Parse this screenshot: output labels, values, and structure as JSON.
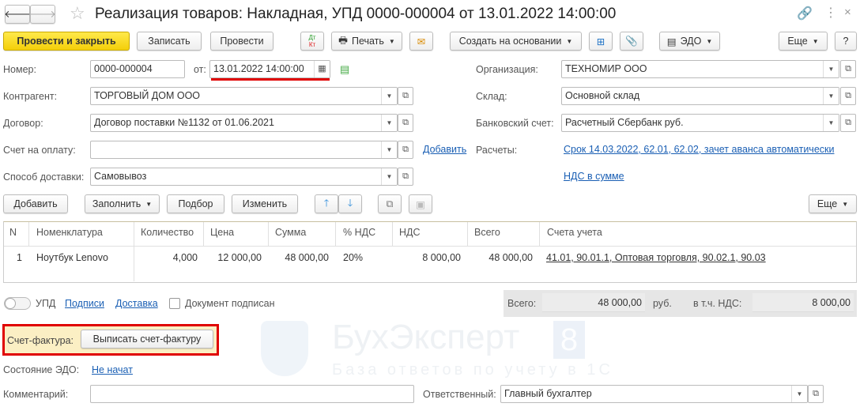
{
  "title": "Реализация товаров: Накладная, УПД 0000-000004 от 13.01.2022 14:00:00",
  "toolbar": {
    "post_close": "Провести и закрыть",
    "save": "Записать",
    "post": "Провести",
    "dtkt_dt": "Дт",
    "dtkt_kt": "Кт",
    "print": "Печать",
    "create_based": "Создать на основании",
    "edo": "ЭДО",
    "more": "Еще",
    "help": "?"
  },
  "form": {
    "number_label": "Номер:",
    "number": "0000-000004",
    "date_label": "от:",
    "date": "13.01.2022 14:00:00",
    "counterparty_label": "Контрагент:",
    "counterparty": "ТОРГОВЫЙ ДОМ ООО",
    "contract_label": "Договор:",
    "contract": "Договор поставки №1132 от 01.06.2021",
    "invoice_label": "Счет на оплату:",
    "invoice": "",
    "add_link": "Добавить",
    "delivery_label": "Способ доставки:",
    "delivery": "Самовывоз",
    "org_label": "Организация:",
    "org": "ТЕХНОМИР ООО",
    "warehouse_label": "Склад:",
    "warehouse": "Основной склад",
    "bank_label": "Банковский счет:",
    "bank": "Расчетный Сбербанк руб.",
    "settlements_label": "Расчеты:",
    "settlements": "Срок 14.03.2022, 62.01, 62.02, зачет аванса автоматически",
    "vat_link": "НДС в сумме"
  },
  "table_toolbar": {
    "add": "Добавить",
    "fill": "Заполнить",
    "pick": "Подбор",
    "edit": "Изменить",
    "more": "Еще"
  },
  "table": {
    "headers": [
      "N",
      "Номенклатура",
      "Количество",
      "Цена",
      "Сумма",
      "% НДС",
      "НДС",
      "Всего",
      "Счета учета"
    ],
    "rows": [
      [
        "1",
        "Ноутбук Lenovo",
        "4,000",
        "12 000,00",
        "48 000,00",
        "20%",
        "8 000,00",
        "48 000,00",
        "41.01, 90.01.1, Оптовая торговля, 90.02.1, 90.03"
      ]
    ]
  },
  "footer": {
    "upd": "УПД",
    "signatures": "Подписи",
    "delivery": "Доставка",
    "signed": "Документ подписан",
    "total_label": "Всего:",
    "total": "48 000,00",
    "currency": "руб.",
    "vat_label": "в т.ч. НДС:",
    "vat": "8 000,00",
    "invoice_label": "Счет-фактура:",
    "invoice_btn": "Выписать счет-фактуру",
    "edo_label": "Состояние ЭДО:",
    "edo_state": "Не начат",
    "comment_label": "Комментарий:",
    "comment": "",
    "responsible_label": "Ответственный:",
    "responsible": "Главный бухгалтер"
  },
  "watermark": {
    "brand": "БухЭксперт",
    "num": "8",
    "tagline": "База ответов по учету в 1С"
  },
  "colors": {
    "primary": "#f4cf0a",
    "link": "#1a5fb4",
    "highlight": "#e00000"
  }
}
